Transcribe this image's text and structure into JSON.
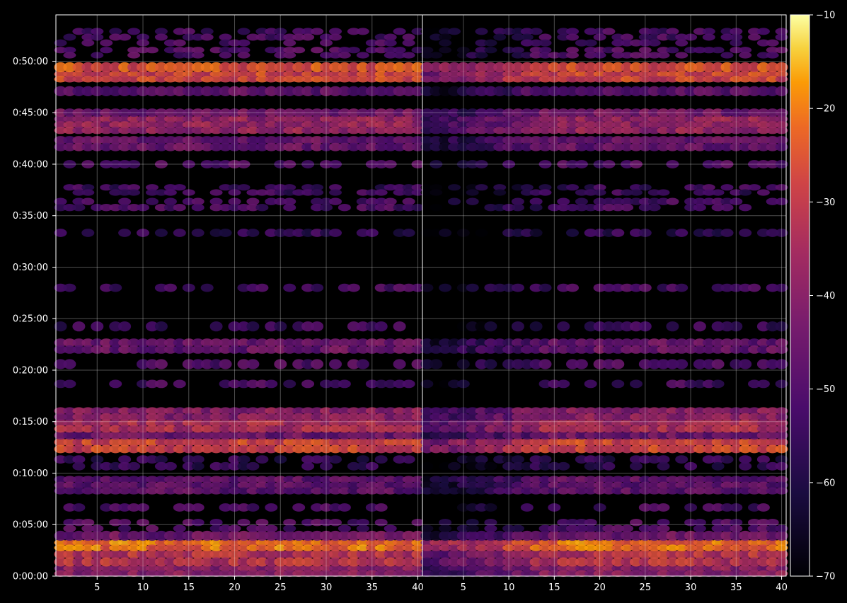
{
  "chart_data": {
    "type": "heatmap",
    "title": "",
    "xlabel": "",
    "ylabel": "",
    "colormap": "inferno",
    "background_color": "#000000",
    "grid": true,
    "panels": [
      {
        "name": "left",
        "xlim": [
          1,
          40
        ],
        "x_ticks": [
          5,
          10,
          15,
          20,
          25,
          30,
          35,
          40
        ],
        "x_tick_labels": [
          "5",
          "10",
          "15",
          "20",
          "25",
          "30",
          "35",
          "40"
        ]
      },
      {
        "name": "right",
        "xlim": [
          1,
          40
        ],
        "x_ticks": [
          5,
          10,
          15,
          20,
          25,
          30,
          35,
          40
        ],
        "x_tick_labels": [
          "5",
          "10",
          "15",
          "20",
          "25",
          "30",
          "35",
          "40"
        ]
      }
    ],
    "ylim_seconds": [
      0,
      3270
    ],
    "y_ticks_seconds": [
      0,
      300,
      600,
      900,
      1200,
      1500,
      1800,
      2100,
      2400,
      2700,
      3000
    ],
    "y_tick_labels": [
      "0:00:00",
      "0:05:00",
      "0:10:00",
      "0:15:00",
      "0:20:00",
      "0:25:00",
      "0:30:00",
      "0:35:00",
      "0:40:00",
      "0:45:00",
      "0:50:00"
    ],
    "colorbar": {
      "range": [
        -70,
        -10
      ],
      "ticks": [
        -10,
        -20,
        -30,
        -40,
        -50,
        -60,
        -70
      ],
      "tick_labels": [
        "−10",
        "−20",
        "−30",
        "−40",
        "−50",
        "−60",
        "−70"
      ]
    },
    "bands": [
      {
        "y_start": 0,
        "y_end": 60,
        "level": -40
      },
      {
        "y_start": 60,
        "y_end": 150,
        "level": -32
      },
      {
        "y_start": 150,
        "y_end": 210,
        "level": -22
      },
      {
        "y_start": 210,
        "y_end": 260,
        "level": -45
      },
      {
        "y_start": 260,
        "y_end": 330,
        "level": -50
      },
      {
        "y_start": 380,
        "y_end": 420,
        "level": -52
      },
      {
        "y_start": 480,
        "y_end": 580,
        "level": -48
      },
      {
        "y_start": 620,
        "y_end": 700,
        "level": -56
      },
      {
        "y_start": 720,
        "y_end": 800,
        "level": -28
      },
      {
        "y_start": 800,
        "y_end": 840,
        "level": -45
      },
      {
        "y_start": 840,
        "y_end": 910,
        "level": -34
      },
      {
        "y_start": 910,
        "y_end": 980,
        "level": -40
      },
      {
        "y_start": 1100,
        "y_end": 1140,
        "level": -52
      },
      {
        "y_start": 1210,
        "y_end": 1260,
        "level": -50
      },
      {
        "y_start": 1300,
        "y_end": 1380,
        "level": -46
      },
      {
        "y_start": 1430,
        "y_end": 1480,
        "level": -54
      },
      {
        "y_start": 1660,
        "y_end": 1700,
        "level": -52
      },
      {
        "y_start": 1980,
        "y_end": 2020,
        "level": -56
      },
      {
        "y_start": 2130,
        "y_end": 2200,
        "level": -52
      },
      {
        "y_start": 2220,
        "y_end": 2280,
        "level": -54
      },
      {
        "y_start": 2380,
        "y_end": 2420,
        "level": -50
      },
      {
        "y_start": 2480,
        "y_end": 2560,
        "level": -46
      },
      {
        "y_start": 2580,
        "y_end": 2680,
        "level": -38
      },
      {
        "y_start": 2680,
        "y_end": 2720,
        "level": -44
      },
      {
        "y_start": 2800,
        "y_end": 2850,
        "level": -48
      },
      {
        "y_start": 2880,
        "y_end": 2940,
        "level": -28
      },
      {
        "y_start": 2940,
        "y_end": 2990,
        "level": -26
      },
      {
        "y_start": 3020,
        "y_end": 3080,
        "level": -50
      },
      {
        "y_start": 3090,
        "y_end": 3190,
        "level": -52
      }
    ]
  }
}
